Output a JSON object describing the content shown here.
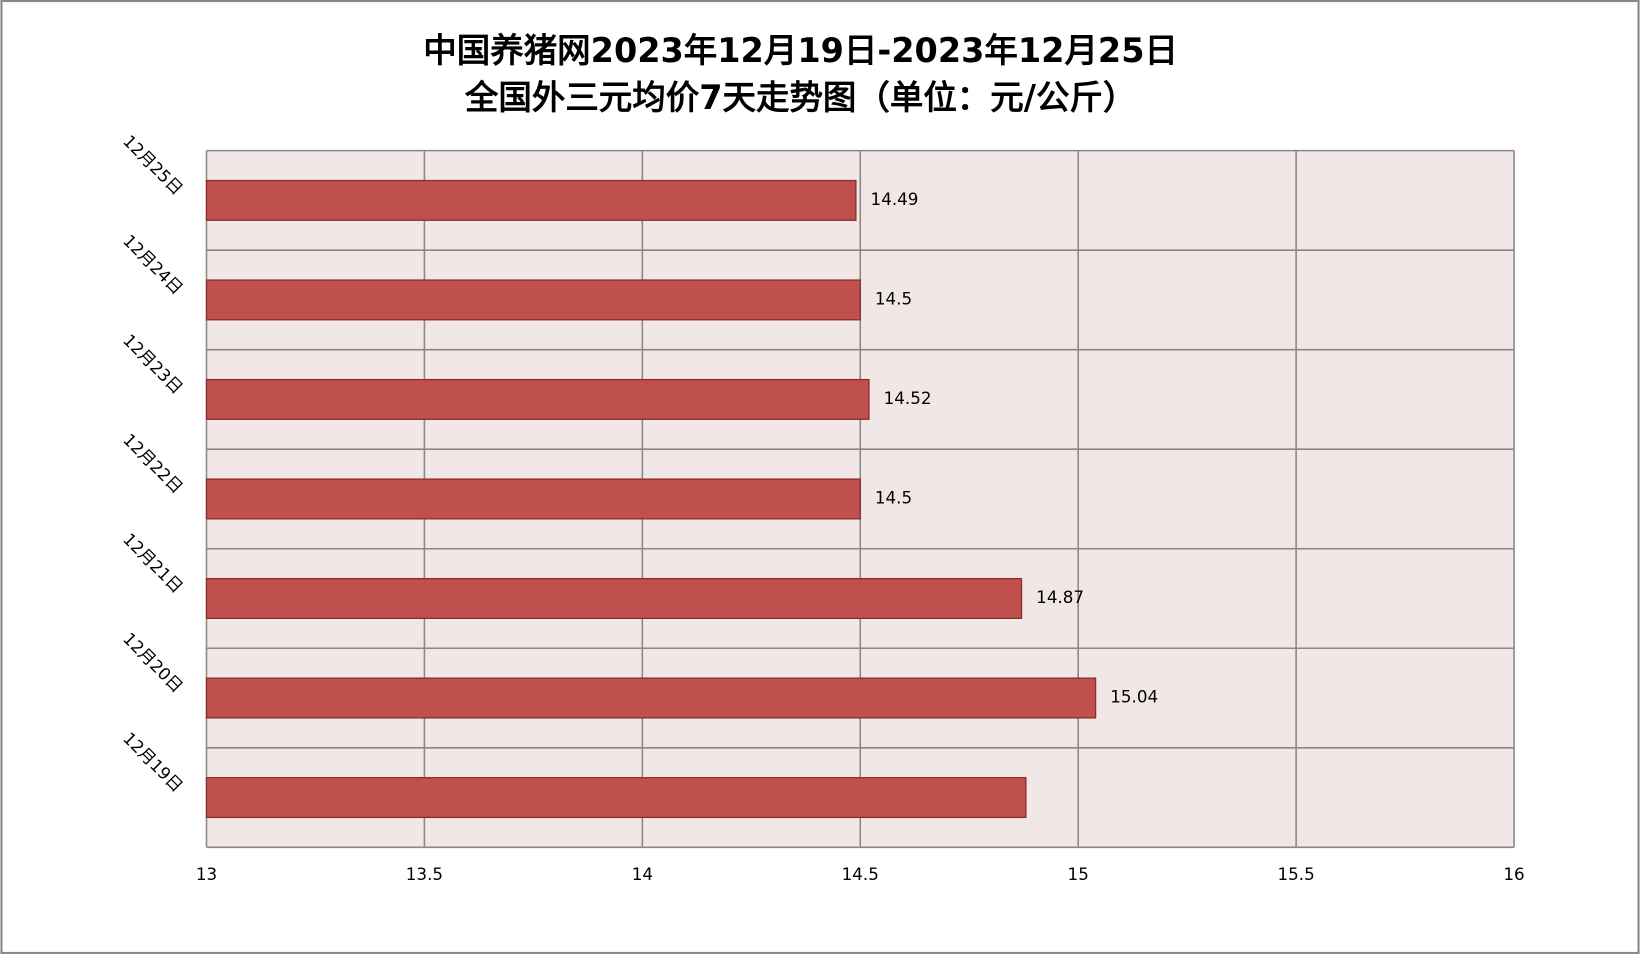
{
  "chart_data": {
    "type": "barh",
    "title": [
      "中国养猪网2023年12月19日-2023年12月25日",
      "全国外三元均价7天走势图（单位：元/公斤）"
    ],
    "categories": [
      "12月19日",
      "12月20日",
      "12月21日",
      "12月22日",
      "12月23日",
      "12月24日",
      "12月25日"
    ],
    "values": [
      14.88,
      15.04,
      14.87,
      14.5,
      14.52,
      14.5,
      14.49
    ],
    "value_labels": [
      null,
      "15.04",
      "14.87",
      "14.5",
      "14.52",
      "14.5",
      "14.49"
    ],
    "color": "#c0504d",
    "xlim": [
      13,
      16
    ],
    "xticks": [
      13,
      13.5,
      14,
      14.5,
      15,
      15.5,
      16
    ],
    "grid": true
  }
}
